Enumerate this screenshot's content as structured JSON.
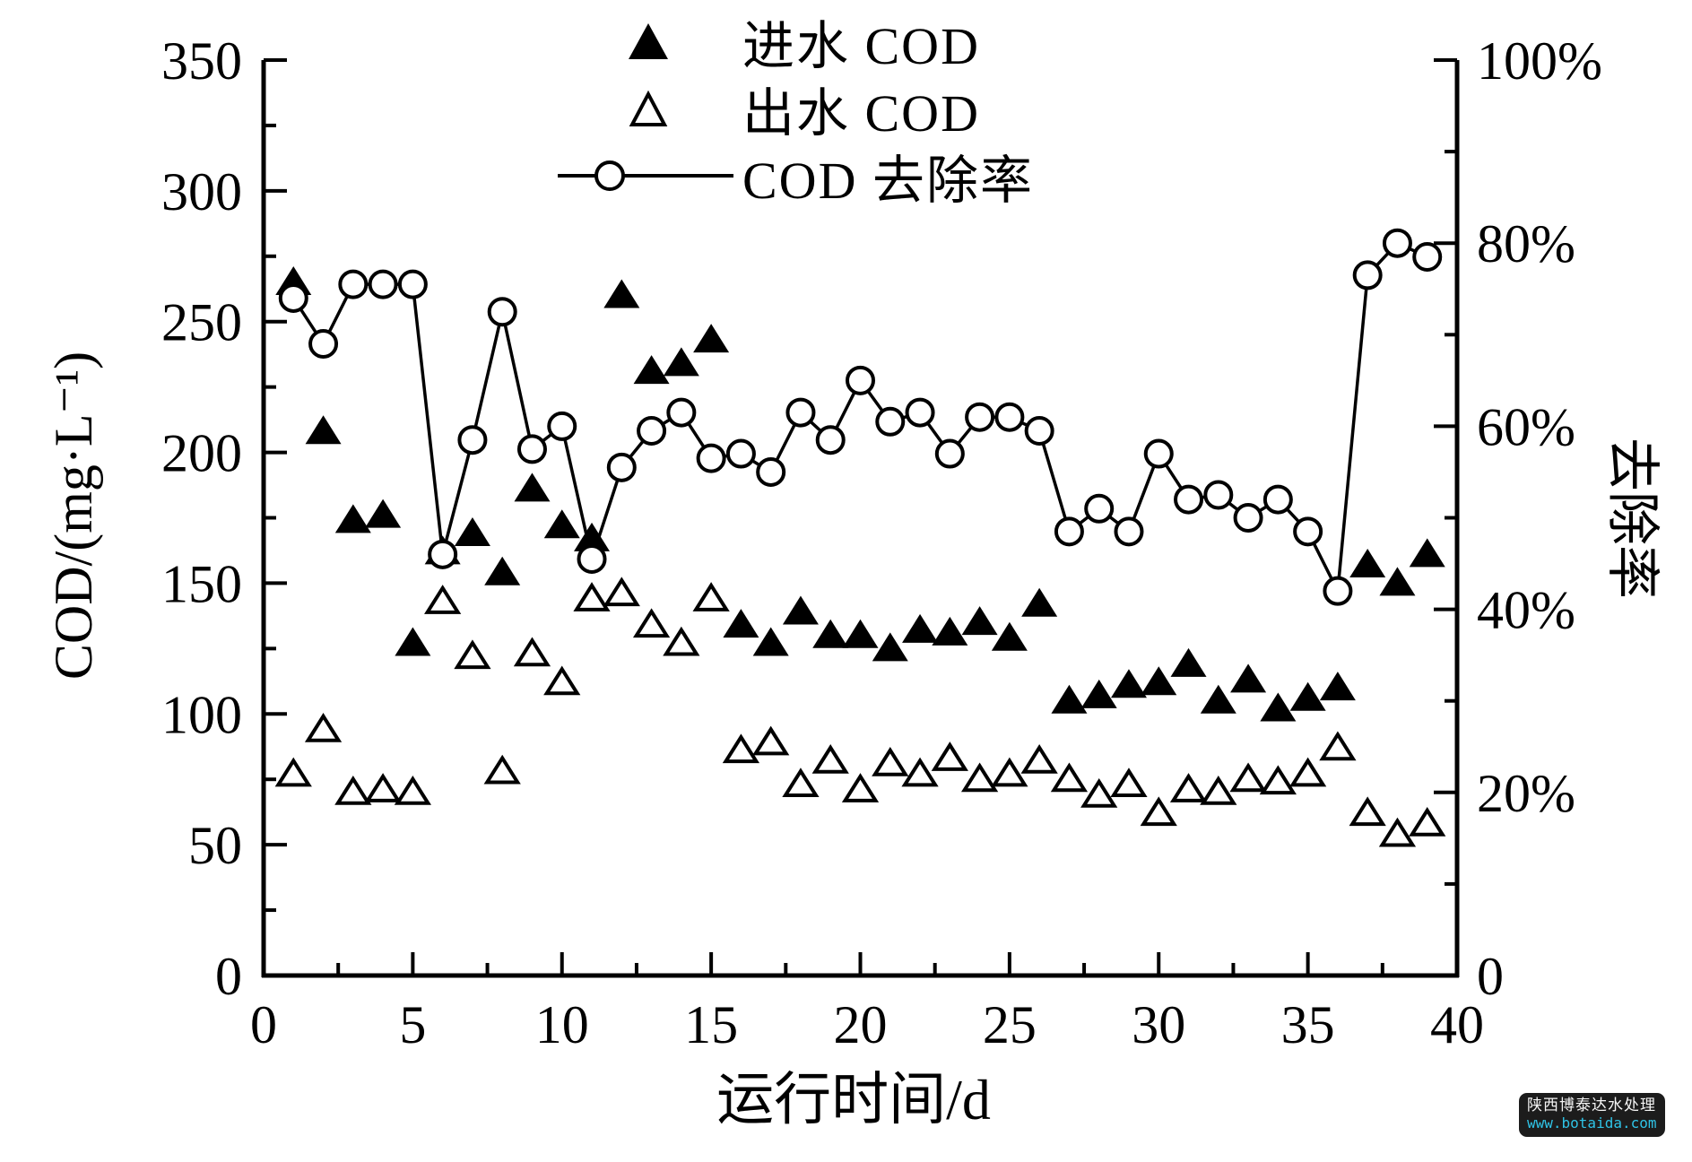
{
  "legend": {
    "influent_label": "进水 COD",
    "effluent_label": "出水 COD",
    "removal_label": "COD 去除率"
  },
  "watermark": {
    "line1": "陕西博泰达水处理",
    "line2": "www.botaida.com",
    "box_color": "#1c1c1c",
    "line1_color": "#f5f5f5",
    "line2_color": "#2fc3e6"
  },
  "chart_data": {
    "type": "line",
    "description": "Dual-axis scatter/line chart: influent COD (filled triangles, left axis), effluent COD (open triangles, left axis), COD removal rate (open circles joined by line, right axis).",
    "x": [
      1,
      2,
      3,
      4,
      5,
      6,
      7,
      8,
      9,
      10,
      11,
      12,
      13,
      14,
      15,
      16,
      17,
      18,
      19,
      20,
      21,
      22,
      23,
      24,
      25,
      26,
      27,
      28,
      29,
      30,
      31,
      32,
      33,
      34,
      35,
      36,
      37,
      38,
      39
    ],
    "series": [
      {
        "name": "进水 COD",
        "marker": "filled-triangle",
        "axis": "left",
        "values": [
          265,
          208,
          174,
          176,
          127,
          162,
          169,
          154,
          186,
          172,
          167,
          260,
          231,
          234,
          243,
          134,
          127,
          139,
          130,
          130,
          125,
          132,
          131,
          135,
          129,
          142,
          105,
          107,
          111,
          112,
          119,
          105,
          113,
          102,
          106,
          110,
          157,
          150,
          161
        ]
      },
      {
        "name": "出水 COD",
        "marker": "open-triangle",
        "axis": "left",
        "values": [
          77,
          94,
          70,
          71,
          70,
          143,
          122,
          78,
          123,
          112,
          144,
          146,
          134,
          127,
          144,
          86,
          89,
          73,
          82,
          71,
          81,
          77,
          83,
          75,
          77,
          82,
          75,
          69,
          73,
          62,
          71,
          70,
          75,
          74,
          77,
          87,
          62,
          54,
          58
        ]
      },
      {
        "name": "COD 去除率",
        "marker": "open-circle",
        "line": true,
        "axis": "right",
        "values": [
          74,
          69,
          75.5,
          75.5,
          75.5,
          46,
          58.5,
          72.5,
          57.5,
          60,
          45.5,
          55.5,
          59.5,
          61.5,
          56.5,
          57,
          55,
          61.5,
          58.5,
          65,
          60.5,
          61.5,
          57,
          61,
          61,
          59.5,
          48.5,
          51,
          48.5,
          57,
          52,
          52.5,
          50,
          52,
          48.5,
          42,
          76.5,
          80,
          78.5
        ]
      }
    ],
    "axes": {
      "x": {
        "label": "运行时间/d",
        "min": 0,
        "max": 40,
        "major": 5,
        "minor": 2.5
      },
      "left": {
        "label": "COD/(mg·L⁻¹)",
        "min": 0,
        "max": 350,
        "major": 50,
        "minor": 25,
        "suffix": ""
      },
      "right": {
        "label": "去除率",
        "min": 0,
        "max": 100,
        "major": 20,
        "minor": 10,
        "suffix": "%"
      }
    },
    "grid": false,
    "legend_position": "top-center",
    "colors": {
      "ink": "#000000",
      "background": "#ffffff"
    }
  }
}
